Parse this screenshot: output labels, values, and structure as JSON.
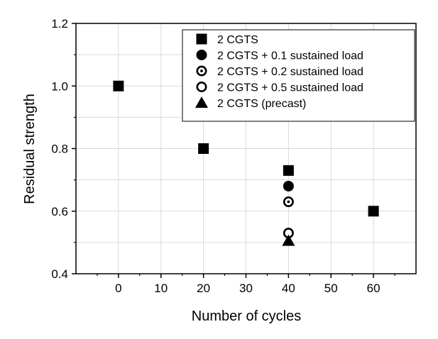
{
  "chart_data": {
    "type": "scatter",
    "title": "",
    "xlabel": "Number of cycles",
    "ylabel": "Residual strength",
    "xlim": [
      -10,
      70
    ],
    "ylim": [
      0.4,
      1.2
    ],
    "grid": true,
    "xticks": [
      0,
      10,
      20,
      30,
      40,
      50,
      60
    ],
    "xtick_labels": [
      "0",
      "10",
      "20",
      "30",
      "40",
      "50",
      "60"
    ],
    "yticks": [
      0.4,
      0.6,
      0.8,
      1.0,
      1.2
    ],
    "ytick_labels": [
      "0.4",
      "0.6",
      "0.8",
      "1.0",
      "1.2"
    ],
    "legend_position": "top-right",
    "series": [
      {
        "name": "2 CGTS",
        "marker": "square",
        "points": [
          [
            0,
            1.0
          ],
          [
            20,
            0.8
          ],
          [
            40,
            0.73
          ],
          [
            60,
            0.6
          ]
        ]
      },
      {
        "name": "2 CGTS + 0.1 sustained load",
        "marker": "circle-filled",
        "points": [
          [
            40,
            0.68
          ]
        ]
      },
      {
        "name": "2 CGTS + 0.2 sustained load",
        "marker": "circle-dot",
        "points": [
          [
            40,
            0.63
          ]
        ]
      },
      {
        "name": "2 CGTS + 0.5 sustained load",
        "marker": "circle-open",
        "points": [
          [
            40,
            0.53
          ]
        ]
      },
      {
        "name": "2 CGTS (precast)",
        "marker": "triangle",
        "points": [
          [
            40,
            0.505
          ]
        ]
      }
    ]
  }
}
